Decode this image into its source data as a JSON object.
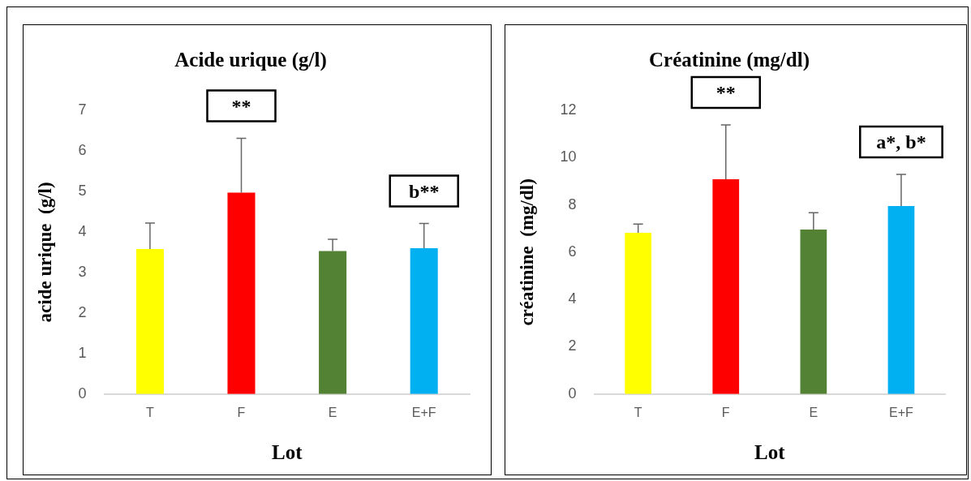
{
  "chart_data": [
    {
      "type": "bar",
      "title": "Acide urique (g/l)",
      "xlabel": "Lot",
      "ylabel": "acide urique  (g/l)",
      "categories": [
        "T",
        "F",
        "E",
        "E+F"
      ],
      "values": [
        3.58,
        4.97,
        3.53,
        3.6
      ],
      "errors": [
        [
          3.58,
          4.22
        ],
        [
          4.97,
          6.31
        ],
        [
          3.53,
          3.82
        ],
        [
          3.6,
          4.21
        ]
      ],
      "colors": [
        "#ffff00",
        "#ff0000",
        "#548235",
        "#00b0f0"
      ],
      "ylim": [
        0,
        7
      ],
      "yticks": [
        0,
        1,
        2,
        3,
        4,
        5,
        6,
        7
      ],
      "grid": false,
      "legend": false,
      "annotations": [
        "**",
        "b**"
      ]
    },
    {
      "type": "bar",
      "title": "Créatinine (mg/dl)",
      "xlabel": "Lot",
      "ylabel": "créatinine  (mg/dl)",
      "categories": [
        "T",
        "F",
        "E",
        "E+F"
      ],
      "values": [
        6.82,
        9.08,
        6.96,
        7.95
      ],
      "errors": [
        [
          6.82,
          7.19
        ],
        [
          9.08,
          11.38
        ],
        [
          6.96,
          7.67
        ],
        [
          7.95,
          9.29
        ]
      ],
      "colors": [
        "#ffff00",
        "#ff0000",
        "#548235",
        "#00b0f0"
      ],
      "ylim": [
        0,
        12
      ],
      "yticks": [
        0,
        2,
        4,
        6,
        8,
        10,
        12
      ],
      "grid": false,
      "legend": false,
      "annotations": [
        "**",
        "a*, b*"
      ]
    }
  ]
}
